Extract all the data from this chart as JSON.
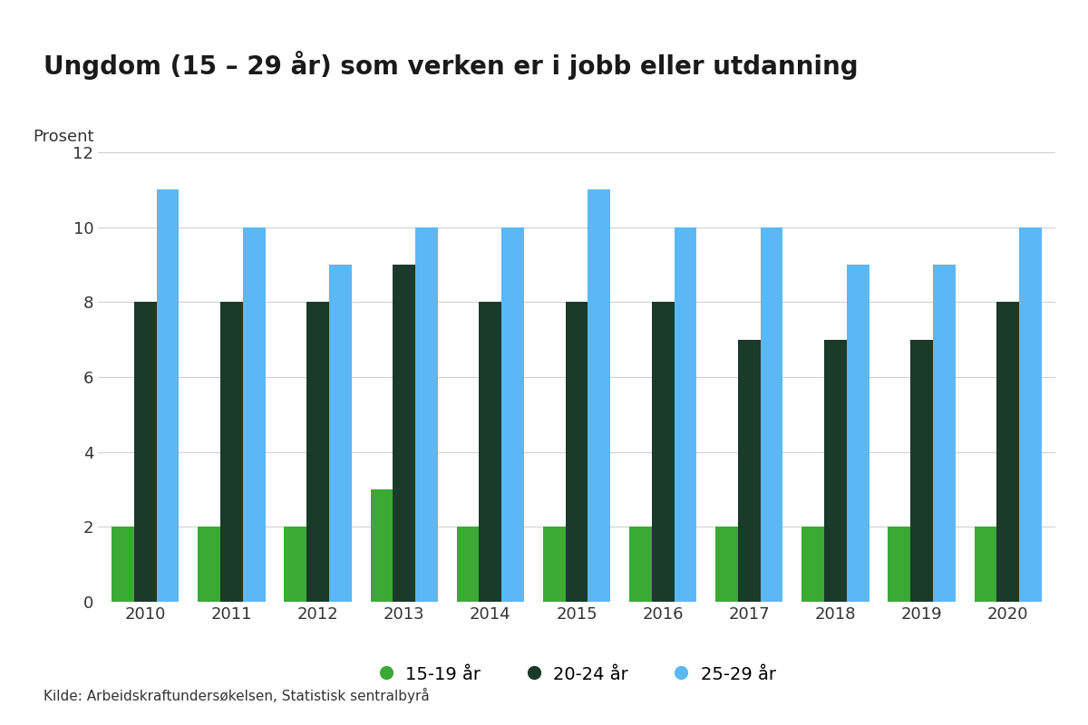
{
  "title": "Ungdom (15 – 29 år) som verken er i jobb eller utdanning",
  "ylabel": "Prosent",
  "source": "Kilde: Arbeidskraftundersøkelsen, Statistisk sentralbyrå",
  "years": [
    2010,
    2011,
    2012,
    2013,
    2014,
    2015,
    2016,
    2017,
    2018,
    2019,
    2020
  ],
  "series": {
    "15-19 år": {
      "values": [
        2,
        2,
        2,
        3,
        2,
        2,
        2,
        2,
        2,
        2,
        2
      ],
      "color": "#3aaa35"
    },
    "20-24 år": {
      "values": [
        8,
        8,
        8,
        9,
        8,
        8,
        8,
        7,
        7,
        7,
        8
      ],
      "color": "#1a3a2a"
    },
    "25-29 år": {
      "values": [
        11,
        10,
        9,
        10,
        10,
        11,
        10,
        10,
        9,
        9,
        10
      ],
      "color": "#5bb8f5"
    }
  },
  "ylim": [
    0,
    12
  ],
  "yticks": [
    0,
    2,
    4,
    6,
    8,
    10,
    12
  ],
  "background_color": "#ffffff",
  "grid_color": "#d0d0d0",
  "title_fontsize": 20,
  "axis_label_fontsize": 13,
  "tick_fontsize": 13,
  "legend_fontsize": 14,
  "source_fontsize": 11,
  "bar_width": 0.26
}
